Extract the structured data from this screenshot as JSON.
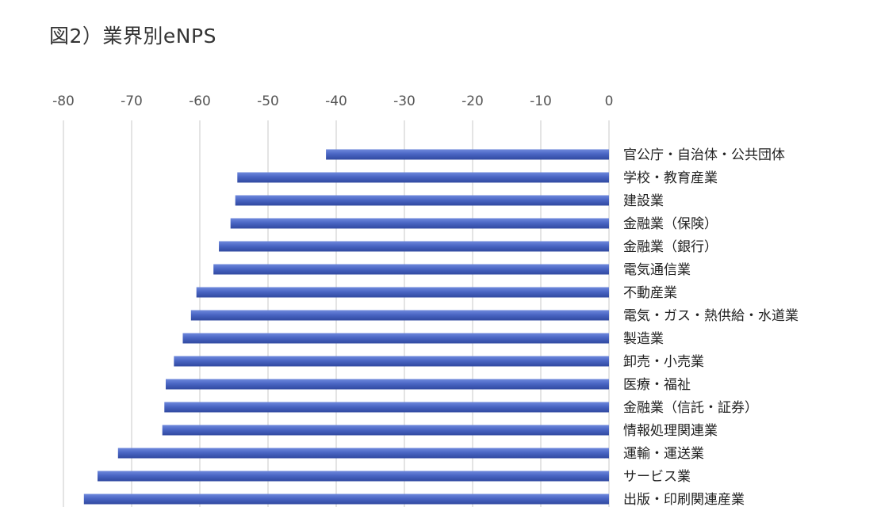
{
  "figure": {
    "title": "図2）業界別eNPS"
  },
  "colors": {
    "bar": "#4a66c4",
    "bar_light": "#6f89dc",
    "bar_dark": "#3049a0",
    "grid": "#c8c8c8",
    "text": "#333333"
  },
  "chart_data": {
    "type": "bar",
    "orientation": "horizontal",
    "title": "",
    "xlabel": "",
    "ylabel": "",
    "xlim": [
      -80,
      0
    ],
    "ticks": [
      -80,
      -70,
      -60,
      -50,
      -40,
      -30,
      -20,
      -10,
      0
    ],
    "tick_position": "top",
    "grid": true,
    "legend": "none",
    "categories": [
      "官公庁・自治体・公共団体",
      "学校・教育産業",
      "建設業",
      "金融業（保険）",
      "金融業（銀行）",
      "電気通信業",
      "不動産業",
      "電気・ガス・熱供給・水道業",
      "製造業",
      "卸売・小売業",
      "医療・福祉",
      "金融業（信託・証券）",
      "情報処理関連業",
      "運輸・運送業",
      "サービス業",
      "出版・印刷関連産業"
    ],
    "values": [
      -41.5,
      -54.5,
      -54.8,
      -55.5,
      -57.2,
      -58.0,
      -60.5,
      -61.3,
      -62.5,
      -63.8,
      -65.0,
      -65.2,
      -65.5,
      -72.0,
      -75.0,
      -77.0
    ]
  }
}
